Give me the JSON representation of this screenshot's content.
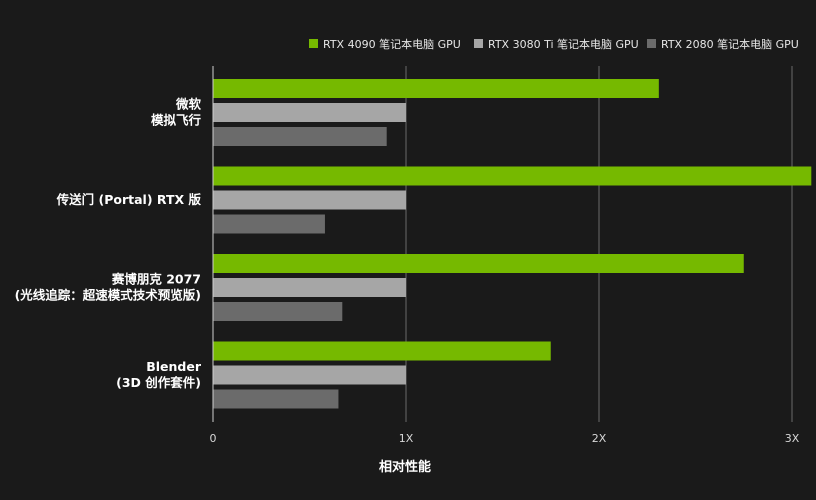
{
  "chart_data": {
    "type": "bar",
    "orientation": "horizontal",
    "xlabel": "相对性能",
    "xlim": [
      0,
      3
    ],
    "xticks": [
      {
        "value": 0,
        "label": "0"
      },
      {
        "value": 1,
        "label": "1X"
      },
      {
        "value": 2,
        "label": "2X"
      },
      {
        "value": 3,
        "label": "3X"
      }
    ],
    "grid": true,
    "legend_position": "top-right",
    "categories": [
      [
        "微软",
        "模拟飞行"
      ],
      [
        "传送门 (Portal) RTX 版"
      ],
      [
        "赛博朋克 2077",
        "(光线追踪：超速模式技术预览版)"
      ],
      [
        "Blender",
        "(3D 创作套件)"
      ]
    ],
    "series": [
      {
        "name": "RTX 4090 笔记本电脑 GPU",
        "color": "#76b900",
        "values": [
          2.31,
          3.1,
          2.75,
          1.75
        ]
      },
      {
        "name": "RTX 3080 Ti 笔记本电脑 GPU",
        "color": "#a6a6a6",
        "values": [
          1.0,
          1.0,
          1.0,
          1.0
        ]
      },
      {
        "name": "RTX 2080 笔记本电脑 GPU",
        "color": "#6b6b6b",
        "values": [
          0.9,
          0.58,
          0.67,
          0.65
        ]
      }
    ],
    "colors": {
      "background": "#1a1a1a",
      "grid": "#6a6a6a",
      "axis": "#d0d0d0"
    }
  }
}
